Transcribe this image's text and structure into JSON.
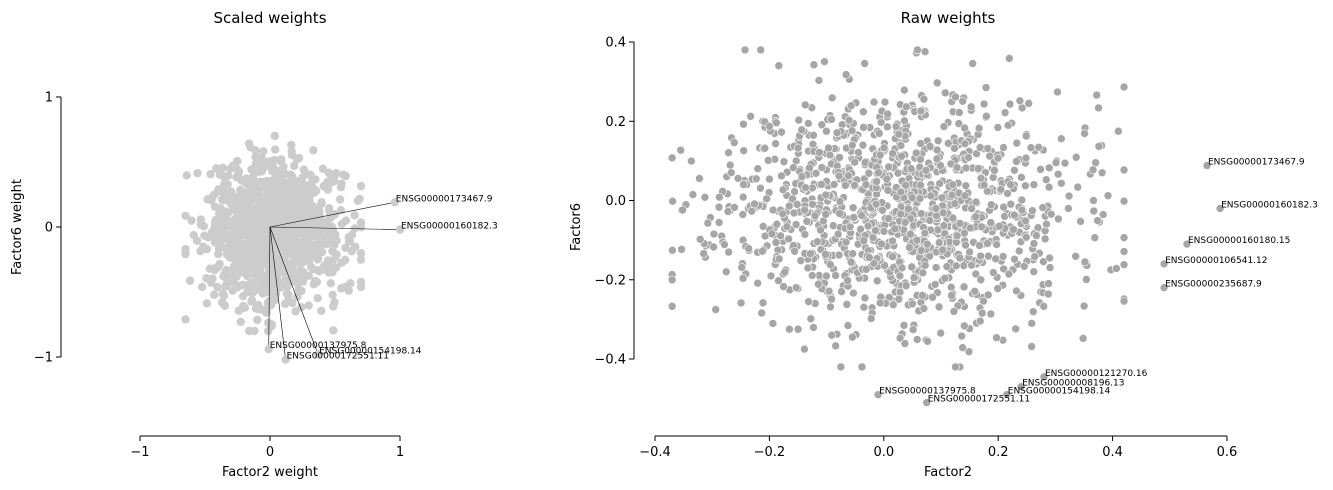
{
  "chart_data": [
    {
      "type": "scatter",
      "title": "Scaled weights",
      "xlabel": "Factor2 weight",
      "ylabel": "Factor6 weight",
      "xlim": [
        -1,
        1
      ],
      "ylim": [
        -1,
        1
      ],
      "xticks": [
        -1,
        0,
        1
      ],
      "xtick_labels": [
        "−1",
        "0",
        "1"
      ],
      "yticks": [
        -1,
        0,
        1
      ],
      "ytick_labels": [
        "−1",
        "0",
        "1"
      ],
      "grid": false,
      "point_color": "#cccccc",
      "scatter_cloud": {
        "x_range": [
          -0.65,
          0.7
        ],
        "y_range": [
          -0.8,
          0.7
        ],
        "approx_points": 1200
      },
      "labeled_points": [
        {
          "label": "ENSG00000173467.9",
          "x": 0.96,
          "y": 0.19
        },
        {
          "label": "ENSG00000160182.3",
          "x": 1.0,
          "y": -0.02
        },
        {
          "label": "ENSG00000137975.8",
          "x": -0.01,
          "y": -0.94
        },
        {
          "label": "ENSG00000154198.14",
          "x": 0.37,
          "y": -0.98
        },
        {
          "label": "ENSG00000172551.11",
          "x": 0.12,
          "y": -1.02
        }
      ],
      "vectors_from_origin": true
    },
    {
      "type": "scatter",
      "title": "Raw weights",
      "xlabel": "Factor2",
      "ylabel": "Factor6",
      "xlim": [
        -0.4,
        0.6
      ],
      "ylim": [
        -0.4,
        0.4
      ],
      "xticks": [
        -0.4,
        -0.2,
        0.0,
        0.2,
        0.4,
        0.6
      ],
      "xtick_labels": [
        "−0.4",
        "−0.2",
        "0.0",
        "0.2",
        "0.4",
        "0.6"
      ],
      "yticks": [
        -0.4,
        -0.2,
        0.0,
        0.2,
        0.4
      ],
      "ytick_labels": [
        "−0.4",
        "−0.2",
        "0.0",
        "0.2",
        "0.4"
      ],
      "grid": false,
      "point_color": "#a6a6a6",
      "scatter_cloud": {
        "x_range": [
          -0.37,
          0.42
        ],
        "y_range": [
          -0.42,
          0.38
        ],
        "approx_points": 1300
      },
      "labeled_points": [
        {
          "label": "ENSG00000173467.9",
          "x": 0.565,
          "y": 0.088
        },
        {
          "label": "ENSG00000160182.3",
          "x": 0.588,
          "y": -0.02
        },
        {
          "label": "ENSG00000160180.15",
          "x": 0.53,
          "y": -0.11
        },
        {
          "label": "ENSG00000106541.12",
          "x": 0.49,
          "y": -0.16
        },
        {
          "label": "ENSG00000235687.9",
          "x": 0.49,
          "y": -0.22
        },
        {
          "label": "ENSG00000121270.16",
          "x": 0.28,
          "y": -0.445
        },
        {
          "label": "ENSG00000008196.13",
          "x": 0.24,
          "y": -0.47
        },
        {
          "label": "ENSG00000154198.14",
          "x": 0.215,
          "y": -0.49
        },
        {
          "label": "ENSG00000137975.8",
          "x": -0.01,
          "y": -0.49
        },
        {
          "label": "ENSG00000172551.11",
          "x": 0.075,
          "y": -0.51
        }
      ],
      "vectors_from_origin": false
    }
  ]
}
